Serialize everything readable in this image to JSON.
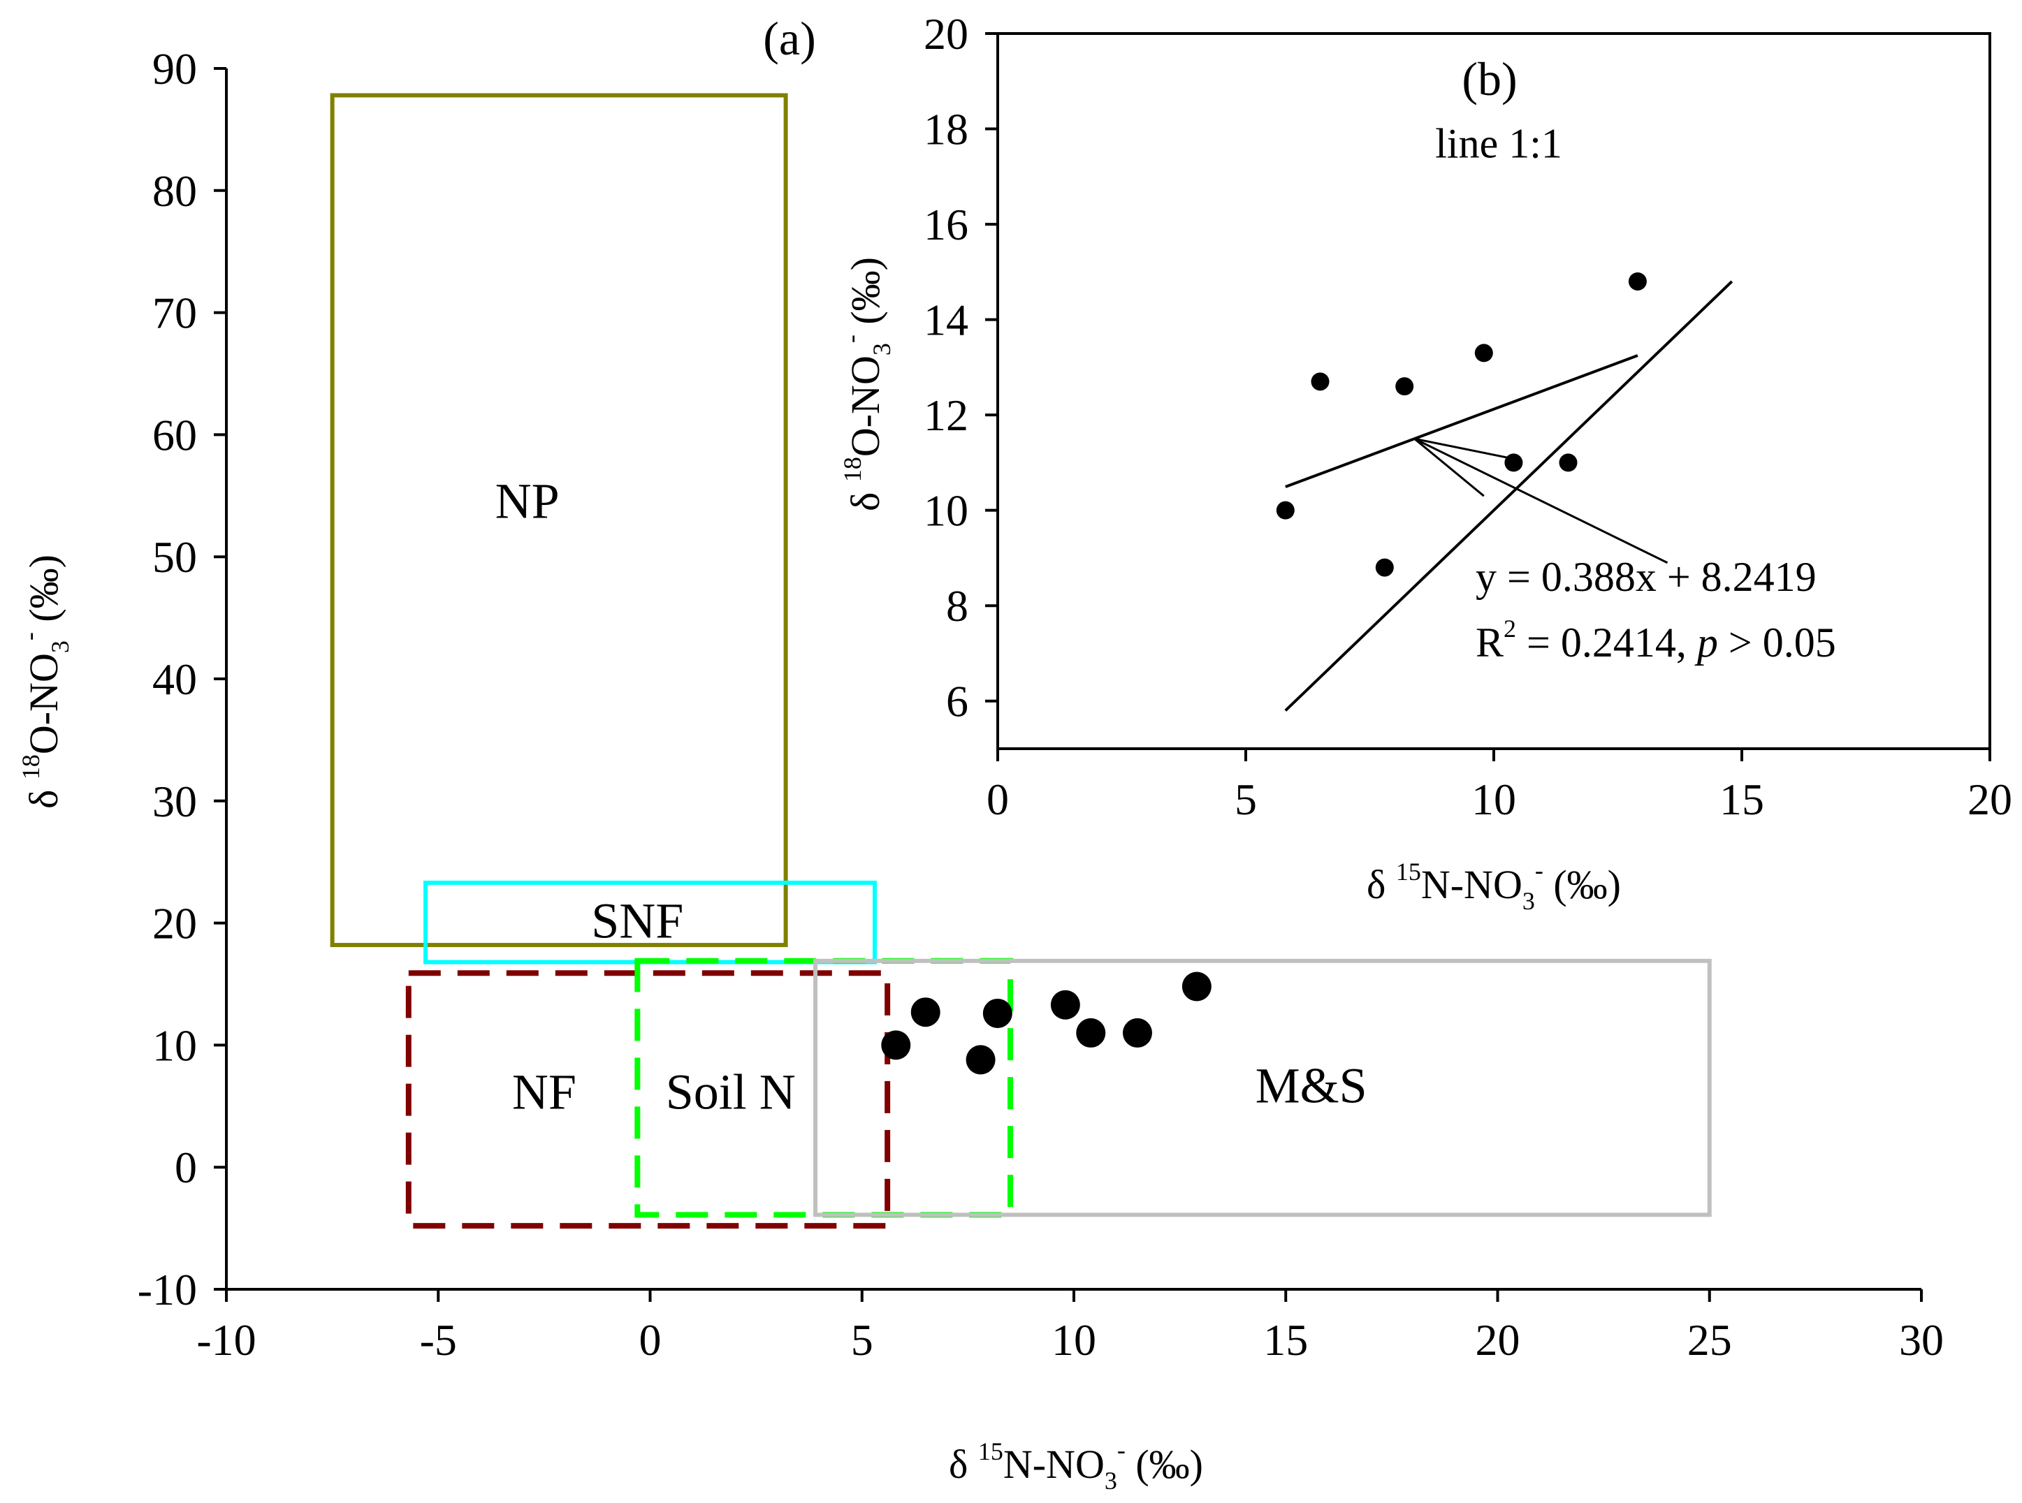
{
  "chart_data": [
    {
      "type": "scatter",
      "panel_label": "(a)",
      "xlim": [
        -10,
        30
      ],
      "ylim": [
        -10,
        90
      ],
      "x_ticks": [
        "-10",
        "-5",
        "0",
        "5",
        "10",
        "15",
        "20",
        "25",
        "30"
      ],
      "x_tick_values": [
        -10,
        -5,
        0,
        5,
        10,
        15,
        20,
        25,
        30
      ],
      "y_ticks": [
        "-10",
        "0",
        "10",
        "20",
        "30",
        "40",
        "50",
        "60",
        "70",
        "80",
        "90"
      ],
      "y_tick_values": [
        -10,
        0,
        10,
        20,
        30,
        40,
        50,
        60,
        70,
        80,
        90
      ],
      "xlabel": {
        "prefix": "δ ",
        "sup": "15",
        "main": "N-NO",
        "sub": "3",
        "sup2": "-",
        "suffix": " (‰)"
      },
      "ylabel": {
        "prefix": "δ ",
        "sup": "18",
        "main": "O-NO",
        "sub": "3",
        "sup2": "-",
        "suffix": " (‰)"
      },
      "source_boxes": [
        {
          "label": "NP",
          "x": [
            -7.5,
            3.2
          ],
          "y": [
            18.2,
            87.8
          ],
          "color": "#808000",
          "style": "solid",
          "label_at": [
            -2.9,
            53.2
          ]
        },
        {
          "label": "SNF",
          "x": [
            -5.3,
            5.3
          ],
          "y": [
            16.8,
            23.3
          ],
          "color": "#00FFFF",
          "style": "solid",
          "label_at": [
            -0.3,
            18.8
          ]
        },
        {
          "label": "NF",
          "x": [
            -5.7,
            5.6
          ],
          "y": [
            -4.8,
            15.9
          ],
          "color": "#800000",
          "style": "dashed",
          "label_at": [
            -2.5,
            4.8
          ]
        },
        {
          "label": "Soil N",
          "x": [
            -0.3,
            8.5
          ],
          "y": [
            -3.9,
            16.9
          ],
          "color": "#00FF00",
          "style": "dashed",
          "label_at": [
            1.9,
            4.8
          ]
        },
        {
          "label": "M&S",
          "x": [
            3.9,
            25.0
          ],
          "y": [
            -3.9,
            16.9
          ],
          "color": "#C0C0C0",
          "style": "solid",
          "label_at": [
            15.6,
            5.3
          ]
        }
      ],
      "points": {
        "x": [
          5.8,
          6.5,
          8.2,
          9.8,
          10.4,
          11.5,
          7.8,
          12.9
        ],
        "y": [
          10.0,
          12.7,
          12.6,
          13.3,
          11.0,
          11.0,
          8.8,
          14.8
        ]
      }
    },
    {
      "type": "scatter",
      "panel_label": "(b)",
      "xlim": [
        0,
        20
      ],
      "ylim": [
        5,
        20
      ],
      "x_ticks": [
        "0",
        "5",
        "10",
        "15",
        "20"
      ],
      "x_tick_values": [
        0,
        5,
        10,
        15,
        20
      ],
      "y_ticks": [
        "6",
        "8",
        "10",
        "12",
        "14",
        "16",
        "18",
        "20"
      ],
      "y_tick_values": [
        6,
        8,
        10,
        12,
        14,
        16,
        18,
        20
      ],
      "xlabel": {
        "prefix": "δ ",
        "sup": "15",
        "main": "N-NO",
        "sub": "3",
        "sup2": "-",
        "suffix": " (‰)"
      },
      "ylabel": {
        "prefix": "δ ",
        "sup": "18",
        "main": "O-NO",
        "sub": "3",
        "sup2": "-",
        "suffix": " (‰)"
      },
      "points": {
        "x": [
          5.8,
          6.5,
          8.2,
          9.8,
          10.4,
          11.5,
          7.8,
          12.9
        ],
        "y": [
          10.0,
          12.7,
          12.6,
          13.3,
          11.0,
          11.0,
          8.8,
          14.8
        ]
      },
      "line_1to1": {
        "label": "line 1:1",
        "x": [
          5.8,
          14.8
        ],
        "label_at": [
          10.1,
          17.4
        ]
      },
      "regression": {
        "slope": 0.388,
        "intercept": 8.2419,
        "x_range": [
          5.8,
          12.9
        ],
        "equation": "y = 0.388x + 8.2419",
        "r2_prefix": "R",
        "r2_sup": "2",
        "r2_value": " = 0.2414, ",
        "p_symbol": "p",
        "p_value": " > 0.05"
      }
    }
  ]
}
